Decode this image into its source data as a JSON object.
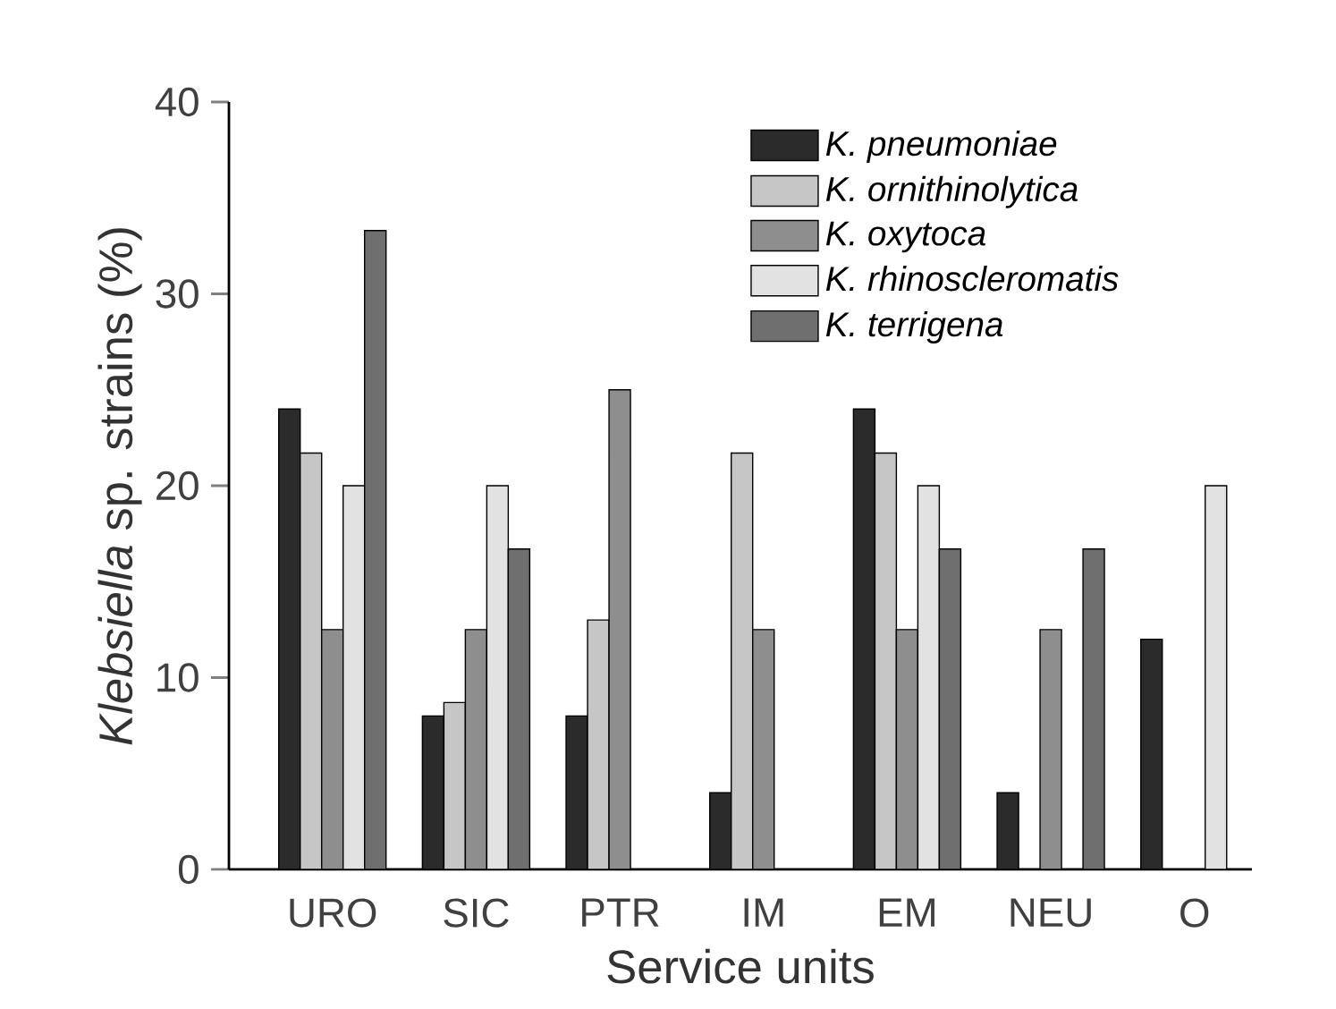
{
  "chart_data": {
    "type": "bar",
    "xlabel": "Service units",
    "ylabel": "*Klebsiella* sp. strains (%)",
    "categories": [
      "URO",
      "SIC",
      "PTR",
      "IM",
      "EM",
      "NEU",
      "O"
    ],
    "series": [
      {
        "name": "K. pneumoniae",
        "color": "#2b2b2b",
        "values": [
          24,
          8,
          8,
          4,
          24,
          4,
          12
        ]
      },
      {
        "name": "K. ornithinolytica",
        "color": "#c6c6c6",
        "values": [
          21.7,
          8.7,
          13,
          21.7,
          21.7,
          null,
          null
        ]
      },
      {
        "name": "K. oxytoca",
        "color": "#8e8e8e",
        "values": [
          12.5,
          12.5,
          25,
          12.5,
          12.5,
          12.5,
          null
        ]
      },
      {
        "name": "K. rhinoscleromatis",
        "color": "#e2e2e2",
        "values": [
          20,
          20,
          null,
          null,
          20,
          null,
          20
        ]
      },
      {
        "name": "K. terrigena",
        "color": "#6f6f6f",
        "values": [
          33.3,
          16.7,
          null,
          null,
          16.7,
          16.7,
          null
        ]
      }
    ],
    "ylim": [
      0,
      40
    ],
    "yticks": [
      0,
      10,
      20,
      30,
      40
    ],
    "grid": false,
    "legend": "top right"
  }
}
